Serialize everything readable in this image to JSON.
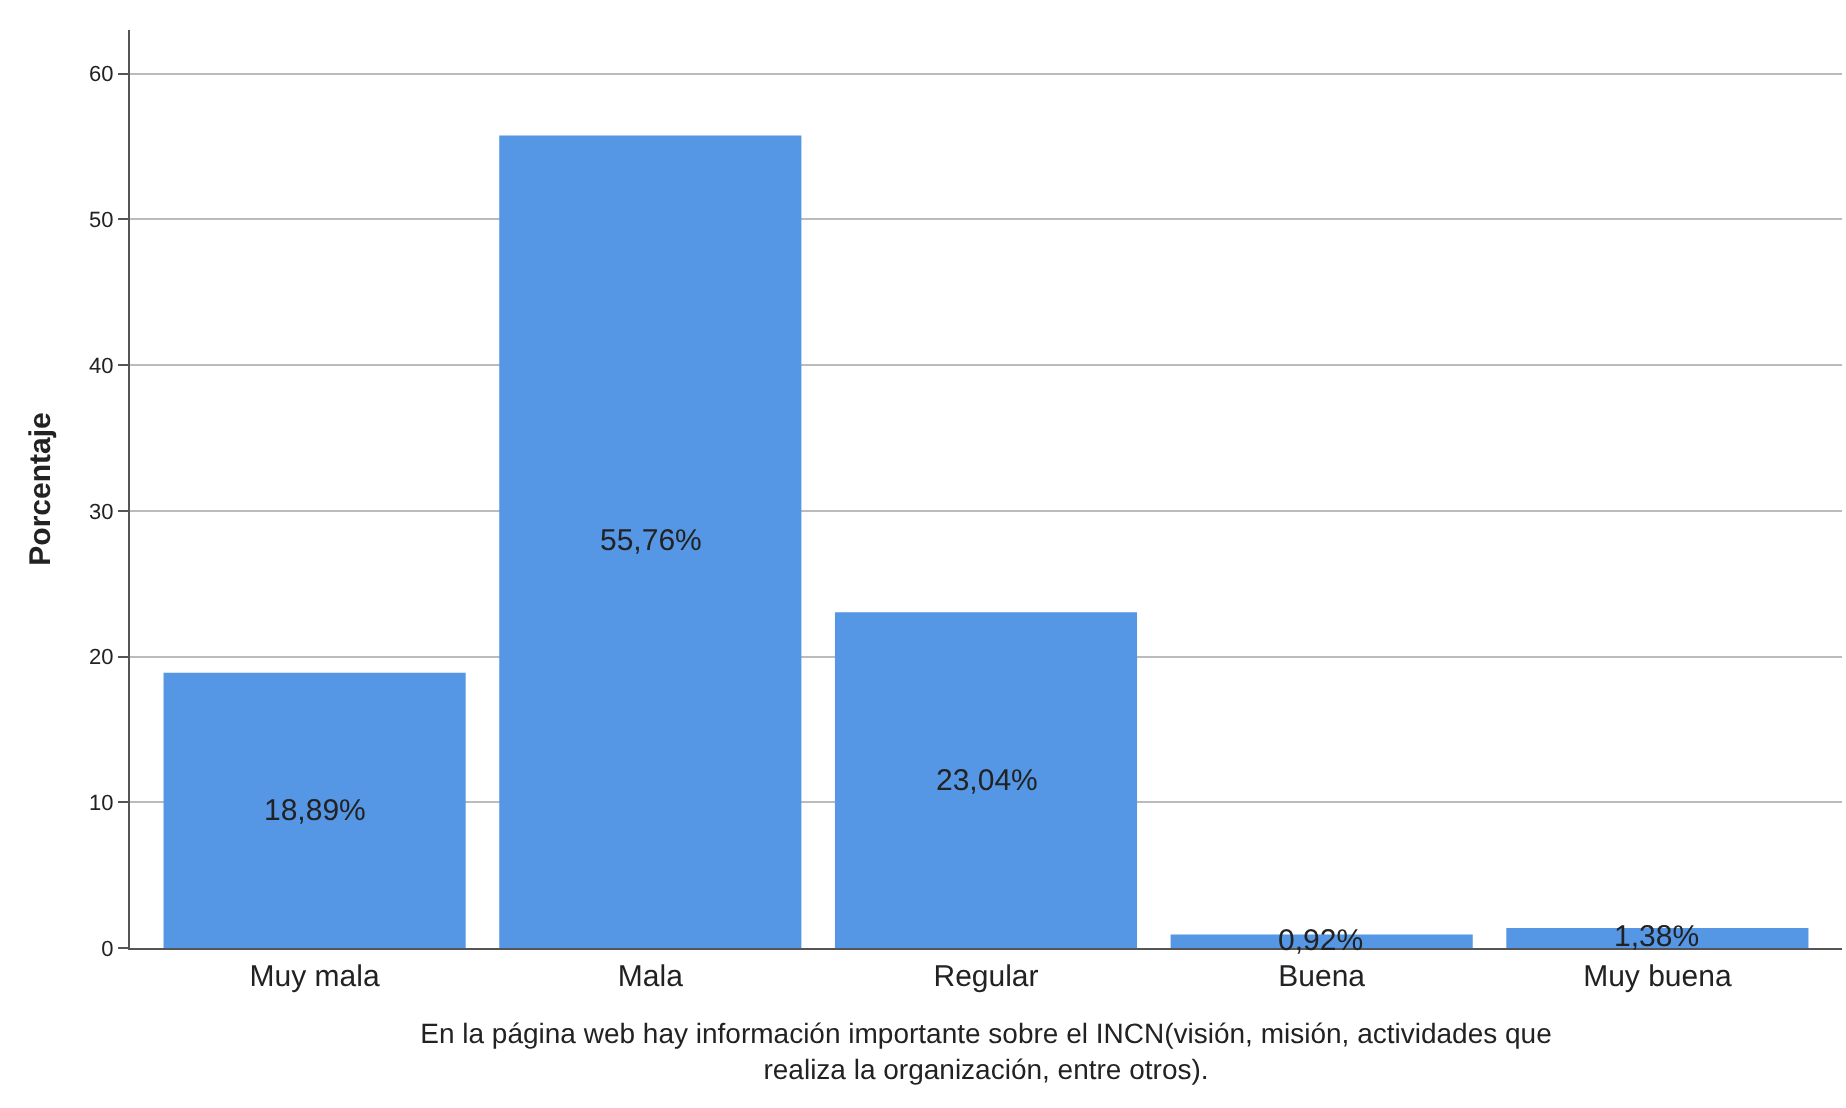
{
  "chart_data": {
    "type": "bar",
    "ylabel": "Porcentaje",
    "xlabel": "En la página web hay información importante sobre el INCN(visión, misión, actividades que realiza la organización, entre otros).",
    "categories": [
      "Muy mala",
      "Mala",
      "Regular",
      "Buena",
      "Muy buena"
    ],
    "values": [
      18.89,
      55.76,
      23.04,
      0.92,
      1.38
    ],
    "value_labels": [
      "18,89%",
      "55,76%",
      "23,04%",
      "0,92%",
      "1,38%"
    ],
    "color": "#5596e5",
    "ylim": [
      0,
      63
    ],
    "yticks": [
      0,
      10,
      20,
      30,
      40,
      50,
      60
    ],
    "grid": "y"
  }
}
